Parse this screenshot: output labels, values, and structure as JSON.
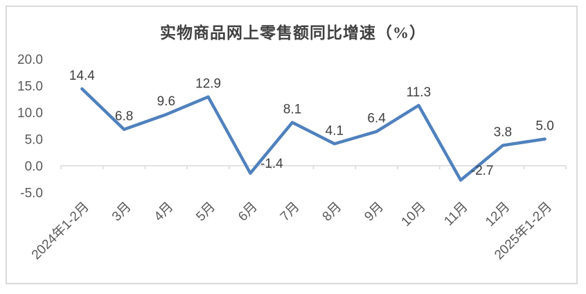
{
  "title": "实物商品网上零售额同比增速（%）",
  "colors": {
    "line": "#4F81BD",
    "axis": "#d9d9d9",
    "frame_border": "#d9d9d9",
    "axis_label": "#595959",
    "data_label": "#404040",
    "title": "#404040",
    "background": "#ffffff"
  },
  "chart_data": {
    "type": "line",
    "title": "实物商品网上零售额同比增速（%）",
    "categories": [
      "2024年1-2月",
      "3月",
      "4月",
      "5月",
      "6月",
      "7月",
      "8月",
      "9月",
      "10月",
      "11月",
      "12月",
      "2025年1-2月"
    ],
    "values": [
      14.4,
      6.8,
      9.6,
      12.9,
      -1.4,
      8.1,
      4.1,
      6.4,
      11.3,
      -2.7,
      3.8,
      5.0
    ],
    "data_labels": [
      "14.4",
      "6.8",
      "9.6",
      "12.9",
      "-1.4",
      "8.1",
      "4.1",
      "6.4",
      "11.3",
      "-2.7",
      "3.8",
      "5.0"
    ],
    "xlabel": "",
    "ylabel": "",
    "ylim": [
      -5,
      20
    ],
    "ytick_step": 5,
    "ytick_labels": [
      "20.0",
      "15.0",
      "10.0",
      "5.0",
      "0.0",
      "-5.0"
    ],
    "ytick_values": [
      20,
      15,
      10,
      5,
      0,
      -5
    ],
    "grid": false,
    "legend_position": "none",
    "x_label_rotation_deg": 45
  }
}
